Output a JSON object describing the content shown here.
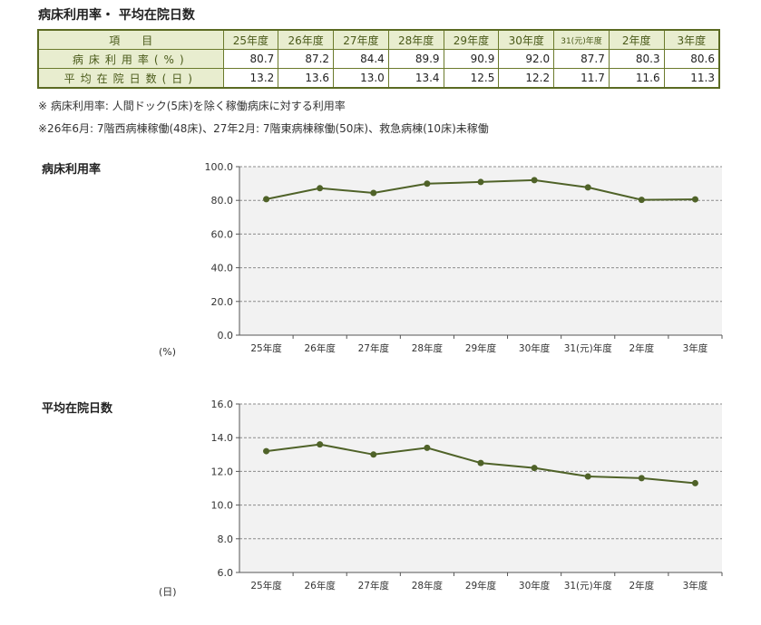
{
  "title": "病床利用率・ 平均在院日数",
  "table": {
    "header_label": "項　　目",
    "columns": [
      "25年度",
      "26年度",
      "27年度",
      "28年度",
      "29年度",
      "30年度",
      "31(元)年度",
      "2年度",
      "3年度"
    ],
    "rows": [
      {
        "label": "病床利用率(%)",
        "values": [
          "80.7",
          "87.2",
          "84.4",
          "89.9",
          "90.9",
          "92.0",
          "87.7",
          "80.3",
          "80.6"
        ]
      },
      {
        "label": "平均在院日数(日)",
        "values": [
          "13.2",
          "13.6",
          "13.0",
          "13.4",
          "12.5",
          "12.2",
          "11.7",
          "11.6",
          "11.3"
        ]
      }
    ]
  },
  "notes": [
    "※ 病床利用率: 人間ドック(5床)を除く稼働病床に対する利用率",
    "※26年6月: 7階西病棟稼働(48床)、27年2月: 7階東病棟稼働(50床)、救急病棟(10床)未稼働"
  ],
  "colors": {
    "line": "#4f6228",
    "plot_bg": "#f2f2f2",
    "grid": "#8c8c8c",
    "table_header": "#e8edcf"
  },
  "chart_data": [
    {
      "type": "line",
      "title": "病床利用率",
      "unit_label": "(%)",
      "categories": [
        "25年度",
        "26年度",
        "27年度",
        "28年度",
        "29年度",
        "30年度",
        "31(元)年度",
        "2年度",
        "3年度"
      ],
      "series": [
        {
          "values": [
            80.7,
            87.2,
            84.4,
            89.9,
            90.9,
            92.0,
            87.7,
            80.3,
            80.6
          ]
        }
      ],
      "yticks": [
        "0.0",
        "20.0",
        "40.0",
        "60.0",
        "80.0",
        "100.0"
      ],
      "ylim": [
        0,
        100
      ],
      "grid": true
    },
    {
      "type": "line",
      "title": "平均在院日数",
      "unit_label": "(日)",
      "categories": [
        "25年度",
        "26年度",
        "27年度",
        "28年度",
        "29年度",
        "30年度",
        "31(元)年度",
        "2年度",
        "3年度"
      ],
      "series": [
        {
          "values": [
            13.2,
            13.6,
            13.0,
            13.4,
            12.5,
            12.2,
            11.7,
            11.6,
            11.3
          ]
        }
      ],
      "yticks": [
        "6.0",
        "8.0",
        "10.0",
        "12.0",
        "14.0",
        "16.0"
      ],
      "ylim": [
        6,
        16
      ],
      "grid": true
    }
  ]
}
